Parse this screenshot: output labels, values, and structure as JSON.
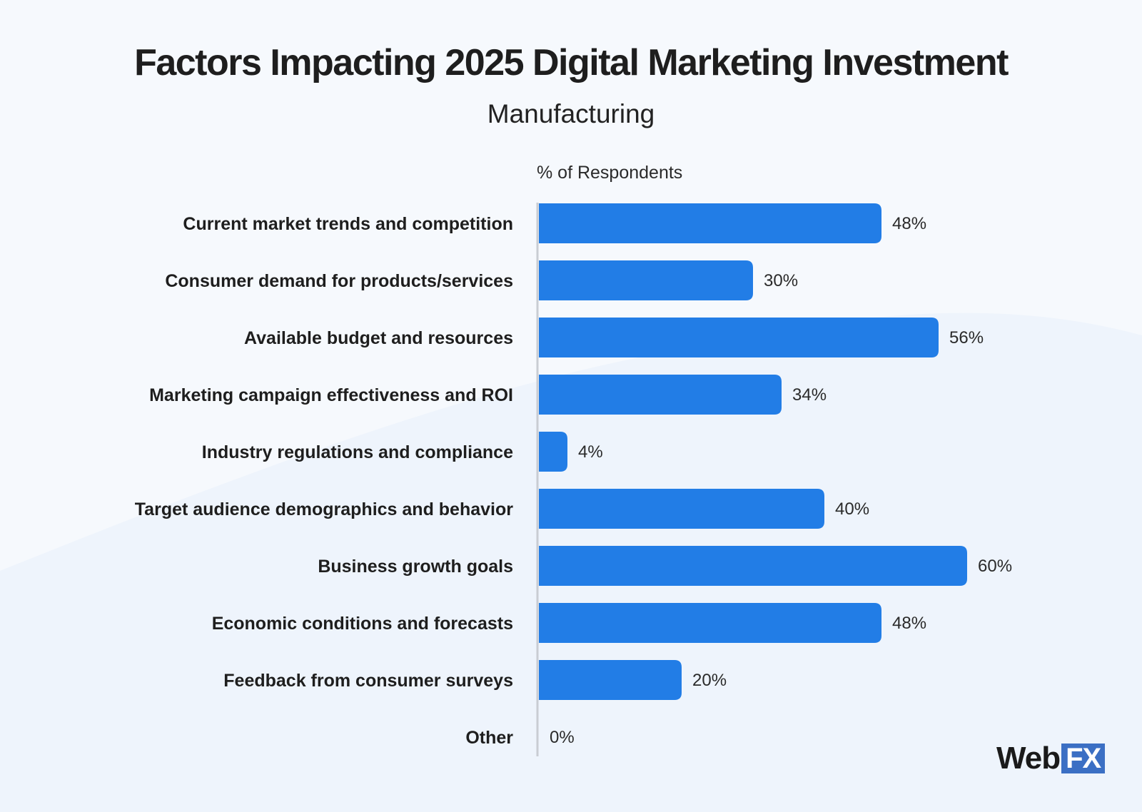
{
  "title": "Factors Impacting 2025 Digital Marketing Investment",
  "subtitle": "Manufacturing",
  "chart_data": {
    "type": "bar",
    "orientation": "horizontal",
    "title": "Factors Impacting 2025 Digital Marketing Investment",
    "subtitle": "Manufacturing",
    "xlabel": "% of Respondents",
    "ylabel": "",
    "categories": [
      "Current market trends and competition",
      "Consumer demand for products/services",
      "Available budget and resources",
      "Marketing campaign effectiveness and ROI",
      "Industry regulations and compliance",
      "Target audience demographics and behavior",
      "Business growth goals",
      "Economic conditions and forecasts",
      "Feedback from consumer surveys",
      "Other"
    ],
    "values": [
      48,
      30,
      56,
      34,
      4,
      40,
      60,
      48,
      20,
      0
    ],
    "value_labels": [
      "48%",
      "30%",
      "56%",
      "34%",
      "4%",
      "40%",
      "60%",
      "48%",
      "20%",
      "0%"
    ],
    "bar_color": "#227de6",
    "grid": false,
    "legend": "none"
  },
  "logo": {
    "web": "Web",
    "fx": "FX"
  }
}
